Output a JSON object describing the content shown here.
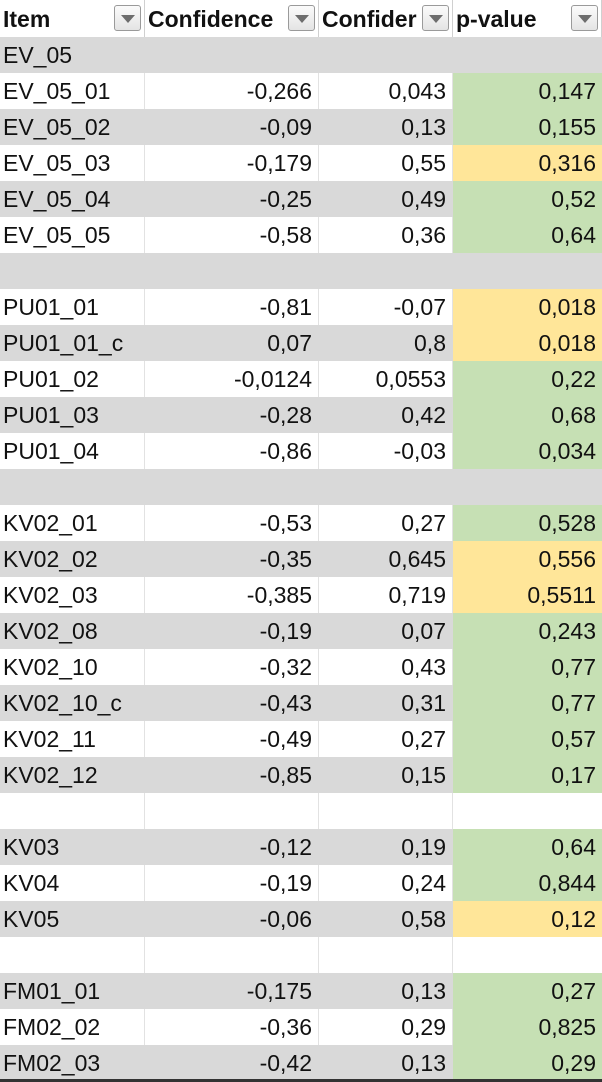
{
  "table": {
    "header": [
      "Item",
      "Confidence",
      "Confider",
      "p-value"
    ],
    "rows": [
      {
        "cells": [
          "EV_05"
        ]
      },
      {
        "cells": [
          "EV_05_01",
          "-0,266",
          "0,043",
          "0,147"
        ],
        "p_color": "#c6e0b4"
      },
      {
        "cells": [
          "EV_05_02",
          "-0,09",
          "0,13",
          "0,155"
        ],
        "p_color": "#c6e0b4"
      },
      {
        "cells": [
          "EV_05_03",
          "-0,179",
          "0,55",
          "0,316"
        ],
        "p_color": "#ffe699"
      },
      {
        "cells": [
          "EV_05_04",
          "-0,25",
          "0,49",
          "0,52"
        ],
        "p_color": "#c6e0b4"
      },
      {
        "cells": [
          "EV_05_05",
          "-0,58",
          "0,36",
          "0,64"
        ],
        "p_color": "#c6e0b4"
      },
      {
        "cells": []
      },
      {
        "cells": [
          "PU01_01",
          "-0,81",
          "-0,07",
          "0,018"
        ],
        "p_color": "#ffe699"
      },
      {
        "cells": [
          "PU01_01_c",
          "0,07",
          "0,8",
          "0,018"
        ],
        "p_color": "#ffe699"
      },
      {
        "cells": [
          "PU01_02",
          "-0,0124",
          "0,0553",
          "0,22"
        ],
        "p_color": "#c6e0b4"
      },
      {
        "cells": [
          "PU01_03",
          "-0,28",
          "0,42",
          "0,68"
        ],
        "p_color": "#c6e0b4"
      },
      {
        "cells": [
          "PU01_04",
          "-0,86",
          "-0,03",
          "0,034"
        ],
        "p_color": "#c6e0b4"
      },
      {
        "cells": []
      },
      {
        "cells": [
          "KV02_01",
          "-0,53",
          "0,27",
          "0,528"
        ],
        "p_color": "#c6e0b4"
      },
      {
        "cells": [
          "KV02_02",
          "-0,35",
          "0,645",
          "0,556"
        ],
        "p_color": "#ffe699"
      },
      {
        "cells": [
          "KV02_03",
          "-0,385",
          "0,719",
          "0,5511"
        ],
        "p_color": "#ffe699"
      },
      {
        "cells": [
          "KV02_08",
          "-0,19",
          "0,07",
          "0,243"
        ],
        "p_color": "#c6e0b4"
      },
      {
        "cells": [
          "KV02_10",
          "-0,32",
          "0,43",
          "0,77"
        ],
        "p_color": "#c6e0b4"
      },
      {
        "cells": [
          "KV02_10_c",
          "-0,43",
          "0,31",
          "0,77"
        ],
        "p_color": "#c6e0b4"
      },
      {
        "cells": [
          "KV02_11",
          "-0,49",
          "0,27",
          "0,57"
        ],
        "p_color": "#c6e0b4"
      },
      {
        "cells": [
          "KV02_12",
          "-0,85",
          "0,15",
          "0,17"
        ],
        "p_color": "#c6e0b4"
      },
      {
        "cells": []
      },
      {
        "cells": [
          "KV03",
          "-0,12",
          "0,19",
          "0,64"
        ],
        "p_color": "#c6e0b4"
      },
      {
        "cells": [
          "KV04",
          "-0,19",
          "0,24",
          "0,844"
        ],
        "p_color": "#c6e0b4"
      },
      {
        "cells": [
          "KV05",
          "-0,06",
          "0,58",
          "0,12"
        ],
        "p_color": "#ffe699"
      },
      {
        "cells": []
      },
      {
        "cells": [
          "FM01_01",
          "-0,175",
          "0,13",
          "0,27"
        ],
        "p_color": "#c6e0b4"
      },
      {
        "cells": [
          "FM02_02",
          "-0,36",
          "0,29",
          "0,825"
        ],
        "p_color": "#c6e0b4"
      },
      {
        "cells": [
          "FM02_03",
          "-0,42",
          "0,13",
          "0,29"
        ],
        "p_color": "#c6e0b4"
      }
    ]
  }
}
